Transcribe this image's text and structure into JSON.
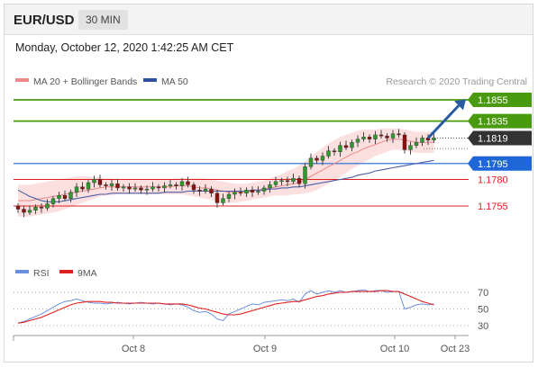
{
  "header": {
    "symbol": "EUR/USD",
    "timeframe": "30 MIN"
  },
  "datetime": "Monday, October 12, 2020 1:42:25 AM CET",
  "legend": {
    "ma_bb": "MA 20 + Bollinger Bands",
    "ma50": "MA 50",
    "credit": "Research © 2020 Trading Central"
  },
  "rsi_legend": {
    "rsi": "RSI",
    "ma9": "9MA"
  },
  "colors": {
    "green": "#4a9a0f",
    "red": "#e02020",
    "blue": "#1f67d8",
    "dark": "#333333",
    "candle_up": "#2f9a2f",
    "candle_down": "#8b1010",
    "bb_fill": "#fbd6d6",
    "ma50": "#4a5fa8",
    "ma20": "#ec8888",
    "rsi": "#6d8ee0"
  },
  "chart_data": [
    {
      "type": "candlestick",
      "title": "EUR/USD",
      "x_tick_labels": [
        "Oct 8",
        "Oct 9",
        "Oct 10",
        "Oct 23"
      ],
      "levels": [
        {
          "value": 1.1855,
          "label": "1.1855",
          "color": "#4a9a0f",
          "kind": "resistance"
        },
        {
          "value": 1.1835,
          "label": "1.1835",
          "color": "#4a9a0f",
          "kind": "resistance"
        },
        {
          "value": 1.1819,
          "label": "1.1819",
          "color": "#333333",
          "kind": "last price"
        },
        {
          "value": 1.1795,
          "label": "1.1795",
          "color": "#1f67d8",
          "kind": "pivot"
        },
        {
          "value": 1.178,
          "label": "1.1780",
          "color": "#e02020",
          "kind": "support"
        },
        {
          "value": 1.1755,
          "label": "1.1755",
          "color": "#e02020",
          "kind": "support"
        }
      ],
      "close": [
        1.1752,
        1.1749,
        1.1751,
        1.1754,
        1.1753,
        1.1757,
        1.1762,
        1.1765,
        1.1762,
        1.1768,
        1.1773,
        1.1771,
        1.1777,
        1.178,
        1.1775,
        1.1774,
        1.1776,
        1.1772,
        1.1773,
        1.1771,
        1.1772,
        1.177,
        1.1771,
        1.1773,
        1.1772,
        1.1774,
        1.1775,
        1.1774,
        1.1778,
        1.1775,
        1.177,
        1.1769,
        1.1771,
        1.1767,
        1.1758,
        1.1762,
        1.1766,
        1.1768,
        1.1767,
        1.177,
        1.1768,
        1.1769,
        1.1772,
        1.1775,
        1.1778,
        1.1779,
        1.1778,
        1.1781,
        1.1776,
        1.1792,
        1.18,
        1.1798,
        1.1802,
        1.1807,
        1.1806,
        1.1812,
        1.181,
        1.1815,
        1.1818,
        1.182,
        1.1818,
        1.1822,
        1.1821,
        1.1819,
        1.1823,
        1.1822,
        1.1808,
        1.1812,
        1.1815,
        1.1819,
        1.1817,
        1.1819
      ],
      "ma20": [
        1.176,
        1.176,
        1.176,
        1.1761,
        1.1762,
        1.1763,
        1.1764,
        1.1765,
        1.1766,
        1.1767,
        1.1768,
        1.1769,
        1.177,
        1.1771,
        1.1772,
        1.1773,
        1.1773,
        1.1773,
        1.1773,
        1.1773,
        1.1773,
        1.1773,
        1.1773,
        1.1773,
        1.1773,
        1.1773,
        1.1773,
        1.1774,
        1.1774,
        1.1774,
        1.1773,
        1.1772,
        1.1772,
        1.1771,
        1.177,
        1.1769,
        1.1768,
        1.1768,
        1.1768,
        1.1768,
        1.1769,
        1.177,
        1.1771,
        1.1772,
        1.1773,
        1.1774,
        1.1775,
        1.1776,
        1.1777,
        1.178,
        1.1783,
        1.1786,
        1.1789,
        1.1792,
        1.1795,
        1.1798,
        1.1801,
        1.1804,
        1.1806,
        1.1809,
        1.1811,
        1.1813,
        1.1815,
        1.1817,
        1.1818,
        1.1818,
        1.1817,
        1.1816,
        1.1815,
        1.1815,
        1.1815,
        1.1815
      ],
      "bb_upper": [
        1.1775,
        1.1775,
        1.1775,
        1.1776,
        1.1777,
        1.1778,
        1.1779,
        1.178,
        1.1781,
        1.1782,
        1.1783,
        1.1783,
        1.1783,
        1.1782,
        1.1782,
        1.1781,
        1.1781,
        1.178,
        1.178,
        1.178,
        1.178,
        1.178,
        1.178,
        1.178,
        1.178,
        1.178,
        1.178,
        1.1781,
        1.1781,
        1.1781,
        1.1781,
        1.1781,
        1.1781,
        1.178,
        1.1779,
        1.1778,
        1.1777,
        1.1776,
        1.1776,
        1.1776,
        1.1777,
        1.1778,
        1.1779,
        1.1781,
        1.1783,
        1.1785,
        1.1788,
        1.179,
        1.1793,
        1.1797,
        1.1802,
        1.1806,
        1.181,
        1.1814,
        1.1817,
        1.182,
        1.1822,
        1.1824,
        1.1826,
        1.1827,
        1.1827,
        1.1827,
        1.1828,
        1.1828,
        1.1828,
        1.1828,
        1.1827,
        1.1826,
        1.1825,
        1.1825,
        1.1825,
        1.1825
      ],
      "bb_lower": [
        1.1745,
        1.1745,
        1.1745,
        1.1746,
        1.1747,
        1.1748,
        1.1749,
        1.175,
        1.1752,
        1.1754,
        1.1756,
        1.1758,
        1.176,
        1.1762,
        1.1764,
        1.1765,
        1.1765,
        1.1766,
        1.1766,
        1.1766,
        1.1766,
        1.1766,
        1.1766,
        1.1766,
        1.1766,
        1.1766,
        1.1766,
        1.1766,
        1.1766,
        1.1765,
        1.1764,
        1.1763,
        1.1762,
        1.1761,
        1.1759,
        1.1758,
        1.1758,
        1.1758,
        1.1759,
        1.176,
        1.1761,
        1.1762,
        1.1763,
        1.1764,
        1.1765,
        1.1765,
        1.1765,
        1.1766,
        1.1766,
        1.1767,
        1.1768,
        1.177,
        1.1773,
        1.1776,
        1.1779,
        1.1782,
        1.1786,
        1.179,
        1.1793,
        1.1796,
        1.1799,
        1.1802,
        1.1804,
        1.1806,
        1.1808,
        1.1808,
        1.1807,
        1.1806,
        1.1805,
        1.1805,
        1.1805,
        1.1805
      ],
      "ma50": [
        1.177,
        1.1767,
        1.1764,
        1.1762,
        1.176,
        1.1759,
        1.1759,
        1.1759,
        1.176,
        1.1761,
        1.1762,
        1.1763,
        1.1764,
        1.1765,
        1.1766,
        1.1766,
        1.1767,
        1.1767,
        1.1767,
        1.1767,
        1.1767,
        1.1767,
        1.1767,
        1.1767,
        1.1767,
        1.1768,
        1.1768,
        1.1768,
        1.1768,
        1.1769,
        1.1769,
        1.1769,
        1.1769,
        1.1769,
        1.1769,
        1.1769,
        1.1769,
        1.1769,
        1.1769,
        1.1769,
        1.177,
        1.177,
        1.177,
        1.1771,
        1.1771,
        1.1772,
        1.1772,
        1.1773,
        1.1773,
        1.1774,
        1.1775,
        1.1776,
        1.1777,
        1.1778,
        1.1779,
        1.178,
        1.1781,
        1.1782,
        1.1784,
        1.1785,
        1.1786,
        1.1788,
        1.1789,
        1.179,
        1.1791,
        1.1792,
        1.1793,
        1.1794,
        1.1795,
        1.1796,
        1.1797,
        1.1798
      ]
    },
    {
      "type": "line",
      "series": [
        {
          "name": "RSI",
          "values": [
            33,
            35,
            38,
            41,
            44,
            48,
            52,
            56,
            59,
            60,
            62,
            60,
            58,
            57,
            57,
            56,
            57,
            58,
            57,
            56,
            57,
            58,
            57,
            56,
            57,
            56,
            55,
            56,
            55,
            52,
            48,
            46,
            47,
            44,
            38,
            36,
            44,
            47,
            50,
            53,
            56,
            55,
            58,
            59,
            60,
            61,
            60,
            62,
            58,
            68,
            72,
            68,
            70,
            72,
            70,
            72,
            70,
            71,
            72,
            73,
            71,
            72,
            72,
            70,
            71,
            71,
            50,
            52,
            55,
            56,
            55,
            56
          ]
        },
        {
          "name": "9MA",
          "values": [
            33,
            34,
            36,
            38,
            40,
            43,
            46,
            49,
            52,
            55,
            57,
            58,
            59,
            59,
            59,
            58,
            58,
            57,
            57,
            57,
            57,
            57,
            57,
            57,
            57,
            56,
            56,
            56,
            56,
            55,
            53,
            51,
            50,
            48,
            46,
            44,
            43,
            43,
            44,
            46,
            48,
            50,
            52,
            54,
            56,
            57,
            58,
            59,
            59,
            61,
            63,
            65,
            66,
            68,
            69,
            70,
            70,
            71,
            71,
            71,
            71,
            71,
            72,
            72,
            71,
            71,
            68,
            65,
            62,
            59,
            57,
            55
          ]
        }
      ],
      "y_tick_labels": [
        "70",
        "50",
        "30"
      ],
      "ylim": [
        20,
        80
      ]
    }
  ]
}
